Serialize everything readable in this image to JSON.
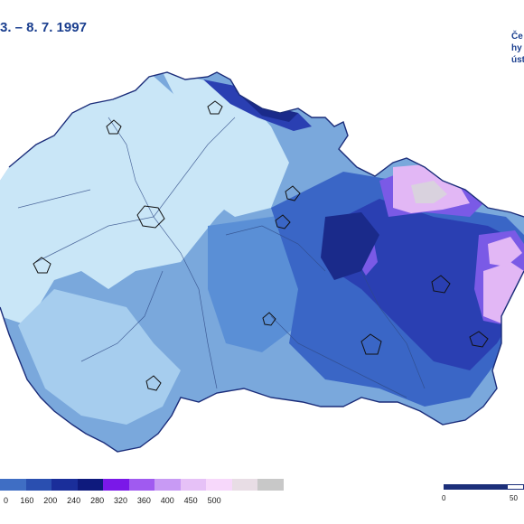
{
  "title": "3. – 8. 7. 1997",
  "logo": {
    "line1": "Če",
    "line2": "hy",
    "line3": "úst"
  },
  "legend": {
    "colors": [
      "#3f6ec4",
      "#2a4fb0",
      "#1a2e9a",
      "#0e1a7d",
      "#7a18e8",
      "#a05af0",
      "#c89af4",
      "#e6c1f7",
      "#f7d8fb",
      "#e8dde5",
      "#c8c8c8"
    ],
    "labels": [
      "0",
      "160",
      "200",
      "240",
      "280",
      "320",
      "360",
      "400",
      "450",
      "500"
    ]
  },
  "scale_bar": {
    "start": "0",
    "end": "50"
  }
}
